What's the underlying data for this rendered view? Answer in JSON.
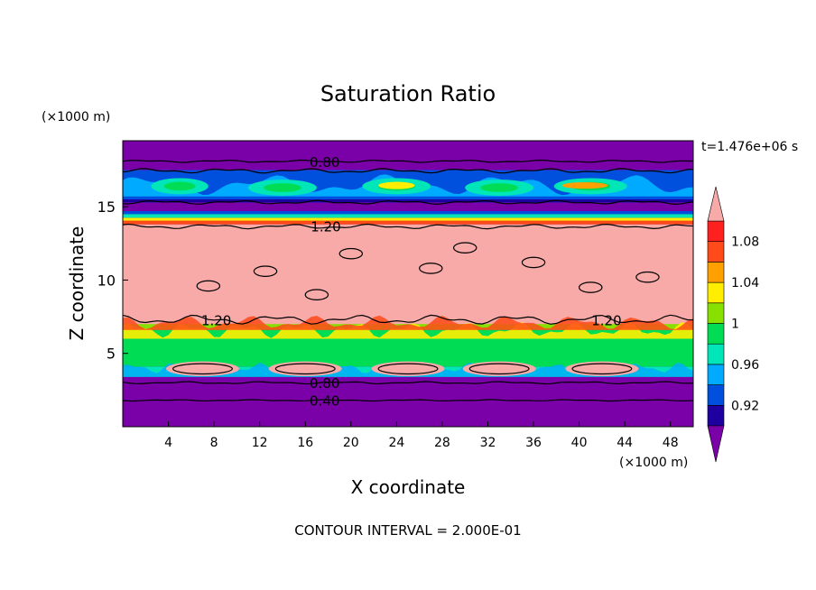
{
  "chart_data": {
    "type": "heatmap",
    "title": "Saturation Ratio",
    "xlabel": "X coordinate",
    "ylabel": "Z coordinate",
    "x_unit": "(×1000 m)",
    "y_unit": "(×1000 m)",
    "time_label": "t=1.476e+06 s",
    "footer": "CONTOUR INTERVAL = 2.000E-01",
    "xlim": [
      0,
      50
    ],
    "ylim": [
      0,
      19.5
    ],
    "xticks": [
      4,
      8,
      12,
      16,
      20,
      24,
      28,
      32,
      36,
      40,
      44,
      48
    ],
    "yticks": [
      5,
      10,
      15
    ],
    "colorbar": {
      "levels": [
        0.9,
        0.92,
        0.94,
        0.96,
        0.98,
        1.0,
        1.02,
        1.04,
        1.06,
        1.08,
        1.1
      ],
      "tick_values": [
        0.92,
        0.96,
        1.0,
        1.04,
        1.08
      ],
      "tick_labels": [
        "0.92",
        "0.96",
        "1",
        "1.04",
        "1.08"
      ],
      "colors": [
        "#7a00a8",
        "#1e00a0",
        "#0050dd",
        "#00aaff",
        "#00e6b8",
        "#00dd55",
        "#88e000",
        "#ffee00",
        "#ffa000",
        "#ff4a1a",
        "#ff2020",
        "#f7aaa8"
      ]
    },
    "bands": [
      {
        "z": [
          0,
          3.4
        ],
        "value": "<0.90"
      },
      {
        "z": [
          3.4,
          7.0
        ],
        "value": "0.96-1.06"
      },
      {
        "z": [
          7.0,
          13.8
        ],
        "value": ">1.10"
      },
      {
        "z": [
          13.8,
          14.5
        ],
        "value": "1.06-1.10"
      },
      {
        "z": [
          14.5,
          15.3
        ],
        "value": "<0.90"
      },
      {
        "z": [
          15.3,
          17.5
        ],
        "value": "0.92-1.06"
      },
      {
        "z": [
          17.5,
          19.5
        ],
        "value": "<0.90"
      }
    ],
    "contour_labels": [
      {
        "text": "0.80",
        "x": 17.7,
        "z": 18.1
      },
      {
        "text": "1.20",
        "x": 17.8,
        "z": 13.7
      },
      {
        "text": "1.20",
        "x": 8.2,
        "z": 7.3
      },
      {
        "text": "1.20",
        "x": 42.4,
        "z": 7.3
      },
      {
        "text": "0.80",
        "x": 17.7,
        "z": 3.0
      },
      {
        "text": "0.40",
        "x": 17.7,
        "z": 1.8
      }
    ]
  }
}
